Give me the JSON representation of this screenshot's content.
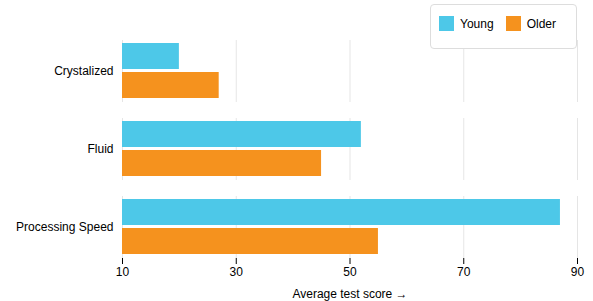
{
  "chart_data": {
    "type": "bar",
    "orientation": "horizontal",
    "categories": [
      "Processing Speed",
      "Fluid",
      "Crystalized"
    ],
    "series": [
      {
        "name": "Young",
        "color": "#4DC8E8",
        "values": [
          87,
          52,
          20
        ]
      },
      {
        "name": "Older",
        "color": "#F5921E",
        "values": [
          55,
          45,
          27
        ]
      }
    ],
    "xlabel": "Average test score",
    "xlim": [
      10,
      90
    ],
    "xticks": [
      10,
      30,
      50,
      70,
      90
    ],
    "grid": true,
    "legend": "upper right"
  }
}
